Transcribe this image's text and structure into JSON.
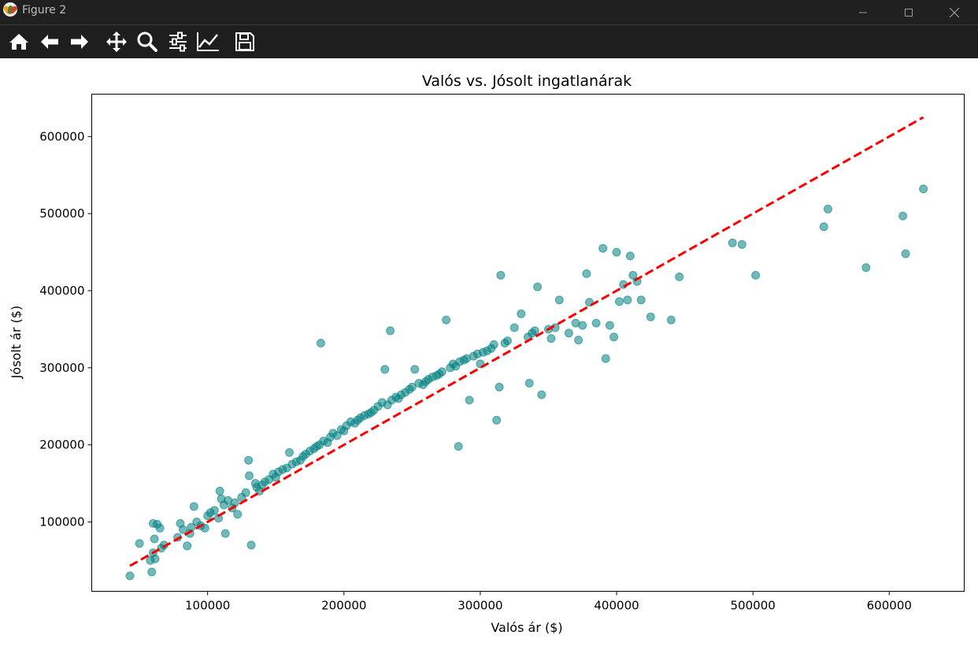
{
  "window": {
    "title": "Figure 2",
    "minimize_icon": "minimize-icon",
    "maximize_icon": "maximize-icon",
    "close_icon": "close-icon"
  },
  "toolbar": {
    "tools": [
      {
        "name": "home-icon",
        "action": "home"
      },
      {
        "name": "back-arrow-icon",
        "action": "back"
      },
      {
        "name": "forward-arrow-icon",
        "action": "forward"
      },
      {
        "name": "pan-move-icon",
        "action": "pan"
      },
      {
        "name": "zoom-magnifier-icon",
        "action": "zoom"
      },
      {
        "name": "configure-subplots-icon",
        "action": "subplots"
      },
      {
        "name": "edit-axis-icon",
        "action": "customize"
      },
      {
        "name": "save-icon",
        "action": "save"
      }
    ]
  },
  "chart_data": {
    "type": "scatter",
    "title": "Valós vs. Jósolt ingatlanárak",
    "xlabel": "Valós ár ($)",
    "ylabel": "Jósolt ár ($)",
    "xlim": [
      15000,
      655000
    ],
    "ylim": [
      10000,
      655000
    ],
    "xticks": [
      100000,
      200000,
      300000,
      400000,
      500000,
      600000
    ],
    "yticks": [
      100000,
      200000,
      300000,
      400000,
      500000,
      600000
    ],
    "grid": false,
    "point_color": "#008080",
    "point_alpha": 0.55,
    "reference_line": {
      "from": [
        43000,
        43000
      ],
      "to": [
        625000,
        625000
      ],
      "color": "#ff0000",
      "style": "dashed"
    },
    "x": [
      43000,
      50000,
      58000,
      59000,
      60000,
      60000,
      61000,
      61500,
      63000,
      65000,
      66000,
      68000,
      78000,
      80000,
      82000,
      85000,
      87000,
      88000,
      90000,
      92000,
      95000,
      98000,
      100000,
      102000,
      105000,
      108000,
      109000,
      110000,
      112000,
      113000,
      115000,
      118000,
      120000,
      122000,
      125000,
      128000,
      130000,
      130500,
      132000,
      135000,
      136000,
      138000,
      140000,
      142000,
      145000,
      148000,
      150000,
      152000,
      155000,
      158000,
      160000,
      162000,
      165000,
      168000,
      170000,
      172000,
      175000,
      178000,
      180000,
      182000,
      183000,
      185000,
      188000,
      190000,
      192000,
      195000,
      198000,
      200000,
      202000,
      205000,
      208000,
      210000,
      212000,
      215000,
      218000,
      220000,
      222000,
      225000,
      228000,
      230000,
      232000,
      234000,
      235000,
      238000,
      240000,
      242000,
      245000,
      248000,
      250000,
      252000,
      255000,
      258000,
      260000,
      262000,
      265000,
      268000,
      270000,
      272000,
      275000,
      278000,
      280000,
      282000,
      284000,
      285000,
      288000,
      290000,
      292000,
      295000,
      298000,
      300000,
      302000,
      305000,
      308000,
      310000,
      312000,
      314000,
      315000,
      318000,
      320000,
      325000,
      330000,
      335000,
      336000,
      338000,
      340000,
      342000,
      345000,
      350000,
      352000,
      355000,
      358000,
      365000,
      370000,
      372000,
      375000,
      378000,
      380000,
      385000,
      390000,
      392000,
      395000,
      398000,
      400000,
      402000,
      405000,
      408000,
      410000,
      412000,
      415000,
      418000,
      425000,
      440000,
      446000,
      485000,
      492000,
      502000,
      552000,
      555000,
      583000,
      610000,
      612000,
      625000
    ],
    "y": [
      30000,
      72000,
      50000,
      35000,
      60000,
      98000,
      78000,
      52000,
      97000,
      92000,
      66000,
      70000,
      80000,
      98000,
      90000,
      69000,
      85000,
      93000,
      120000,
      100000,
      95000,
      92000,
      108000,
      112000,
      115000,
      105000,
      140000,
      130000,
      122000,
      85000,
      128000,
      118000,
      125000,
      110000,
      132000,
      138000,
      180000,
      160000,
      70000,
      150000,
      145000,
      140000,
      148000,
      152000,
      155000,
      162000,
      158000,
      165000,
      168000,
      170000,
      190000,
      175000,
      178000,
      180000,
      185000,
      188000,
      192000,
      195000,
      198000,
      200000,
      332000,
      205000,
      203000,
      210000,
      215000,
      212000,
      220000,
      218000,
      225000,
      230000,
      228000,
      232000,
      235000,
      238000,
      240000,
      242000,
      245000,
      250000,
      255000,
      298000,
      252000,
      348000,
      258000,
      262000,
      260000,
      265000,
      268000,
      272000,
      275000,
      298000,
      280000,
      278000,
      282000,
      285000,
      288000,
      290000,
      292000,
      295000,
      362000,
      300000,
      305000,
      302000,
      198000,
      308000,
      310000,
      312000,
      258000,
      315000,
      318000,
      305000,
      320000,
      322000,
      325000,
      330000,
      232000,
      275000,
      420000,
      332000,
      335000,
      352000,
      370000,
      340000,
      280000,
      345000,
      348000,
      405000,
      265000,
      350000,
      338000,
      352000,
      388000,
      345000,
      358000,
      336000,
      355000,
      422000,
      385000,
      358000,
      455000,
      312000,
      355000,
      340000,
      450000,
      386000,
      408000,
      388000,
      445000,
      420000,
      412000,
      388000,
      366000,
      362000,
      418000,
      462000,
      460000,
      420000,
      483000,
      506000,
      430000,
      497000,
      448000,
      532000
    ]
  }
}
